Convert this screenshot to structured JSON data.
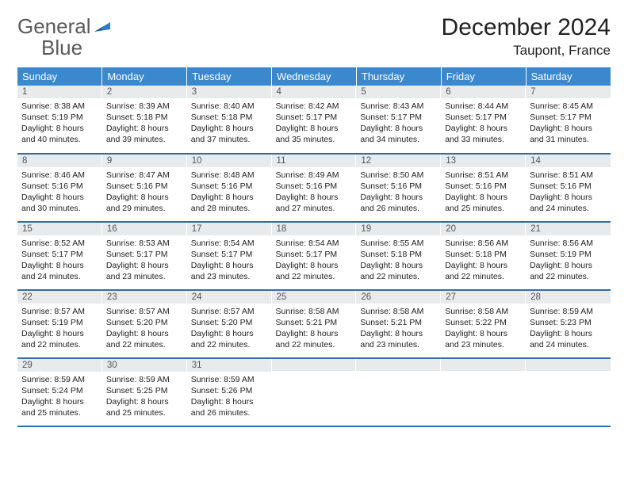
{
  "logo": {
    "line1": "General",
    "line2": "Blue",
    "flag_color": "#2f7bc4"
  },
  "title": "December 2024",
  "location": "Taupont, France",
  "header_bg": "#3a89cf",
  "header_text_color": "#ffffff",
  "daynum_bg": "#e9eaeb",
  "row_border_color": "#2f6fa8",
  "day_headers": [
    "Sunday",
    "Monday",
    "Tuesday",
    "Wednesday",
    "Thursday",
    "Friday",
    "Saturday"
  ],
  "weeks": [
    [
      {
        "n": "1",
        "sunrise": "Sunrise: 8:38 AM",
        "sunset": "Sunset: 5:19 PM",
        "day1": "Daylight: 8 hours",
        "day2": "and 40 minutes."
      },
      {
        "n": "2",
        "sunrise": "Sunrise: 8:39 AM",
        "sunset": "Sunset: 5:18 PM",
        "day1": "Daylight: 8 hours",
        "day2": "and 39 minutes."
      },
      {
        "n": "3",
        "sunrise": "Sunrise: 8:40 AM",
        "sunset": "Sunset: 5:18 PM",
        "day1": "Daylight: 8 hours",
        "day2": "and 37 minutes."
      },
      {
        "n": "4",
        "sunrise": "Sunrise: 8:42 AM",
        "sunset": "Sunset: 5:17 PM",
        "day1": "Daylight: 8 hours",
        "day2": "and 35 minutes."
      },
      {
        "n": "5",
        "sunrise": "Sunrise: 8:43 AM",
        "sunset": "Sunset: 5:17 PM",
        "day1": "Daylight: 8 hours",
        "day2": "and 34 minutes."
      },
      {
        "n": "6",
        "sunrise": "Sunrise: 8:44 AM",
        "sunset": "Sunset: 5:17 PM",
        "day1": "Daylight: 8 hours",
        "day2": "and 33 minutes."
      },
      {
        "n": "7",
        "sunrise": "Sunrise: 8:45 AM",
        "sunset": "Sunset: 5:17 PM",
        "day1": "Daylight: 8 hours",
        "day2": "and 31 minutes."
      }
    ],
    [
      {
        "n": "8",
        "sunrise": "Sunrise: 8:46 AM",
        "sunset": "Sunset: 5:16 PM",
        "day1": "Daylight: 8 hours",
        "day2": "and 30 minutes."
      },
      {
        "n": "9",
        "sunrise": "Sunrise: 8:47 AM",
        "sunset": "Sunset: 5:16 PM",
        "day1": "Daylight: 8 hours",
        "day2": "and 29 minutes."
      },
      {
        "n": "10",
        "sunrise": "Sunrise: 8:48 AM",
        "sunset": "Sunset: 5:16 PM",
        "day1": "Daylight: 8 hours",
        "day2": "and 28 minutes."
      },
      {
        "n": "11",
        "sunrise": "Sunrise: 8:49 AM",
        "sunset": "Sunset: 5:16 PM",
        "day1": "Daylight: 8 hours",
        "day2": "and 27 minutes."
      },
      {
        "n": "12",
        "sunrise": "Sunrise: 8:50 AM",
        "sunset": "Sunset: 5:16 PM",
        "day1": "Daylight: 8 hours",
        "day2": "and 26 minutes."
      },
      {
        "n": "13",
        "sunrise": "Sunrise: 8:51 AM",
        "sunset": "Sunset: 5:16 PM",
        "day1": "Daylight: 8 hours",
        "day2": "and 25 minutes."
      },
      {
        "n": "14",
        "sunrise": "Sunrise: 8:51 AM",
        "sunset": "Sunset: 5:16 PM",
        "day1": "Daylight: 8 hours",
        "day2": "and 24 minutes."
      }
    ],
    [
      {
        "n": "15",
        "sunrise": "Sunrise: 8:52 AM",
        "sunset": "Sunset: 5:17 PM",
        "day1": "Daylight: 8 hours",
        "day2": "and 24 minutes."
      },
      {
        "n": "16",
        "sunrise": "Sunrise: 8:53 AM",
        "sunset": "Sunset: 5:17 PM",
        "day1": "Daylight: 8 hours",
        "day2": "and 23 minutes."
      },
      {
        "n": "17",
        "sunrise": "Sunrise: 8:54 AM",
        "sunset": "Sunset: 5:17 PM",
        "day1": "Daylight: 8 hours",
        "day2": "and 23 minutes."
      },
      {
        "n": "18",
        "sunrise": "Sunrise: 8:54 AM",
        "sunset": "Sunset: 5:17 PM",
        "day1": "Daylight: 8 hours",
        "day2": "and 22 minutes."
      },
      {
        "n": "19",
        "sunrise": "Sunrise: 8:55 AM",
        "sunset": "Sunset: 5:18 PM",
        "day1": "Daylight: 8 hours",
        "day2": "and 22 minutes."
      },
      {
        "n": "20",
        "sunrise": "Sunrise: 8:56 AM",
        "sunset": "Sunset: 5:18 PM",
        "day1": "Daylight: 8 hours",
        "day2": "and 22 minutes."
      },
      {
        "n": "21",
        "sunrise": "Sunrise: 8:56 AM",
        "sunset": "Sunset: 5:19 PM",
        "day1": "Daylight: 8 hours",
        "day2": "and 22 minutes."
      }
    ],
    [
      {
        "n": "22",
        "sunrise": "Sunrise: 8:57 AM",
        "sunset": "Sunset: 5:19 PM",
        "day1": "Daylight: 8 hours",
        "day2": "and 22 minutes."
      },
      {
        "n": "23",
        "sunrise": "Sunrise: 8:57 AM",
        "sunset": "Sunset: 5:20 PM",
        "day1": "Daylight: 8 hours",
        "day2": "and 22 minutes."
      },
      {
        "n": "24",
        "sunrise": "Sunrise: 8:57 AM",
        "sunset": "Sunset: 5:20 PM",
        "day1": "Daylight: 8 hours",
        "day2": "and 22 minutes."
      },
      {
        "n": "25",
        "sunrise": "Sunrise: 8:58 AM",
        "sunset": "Sunset: 5:21 PM",
        "day1": "Daylight: 8 hours",
        "day2": "and 22 minutes."
      },
      {
        "n": "26",
        "sunrise": "Sunrise: 8:58 AM",
        "sunset": "Sunset: 5:21 PM",
        "day1": "Daylight: 8 hours",
        "day2": "and 23 minutes."
      },
      {
        "n": "27",
        "sunrise": "Sunrise: 8:58 AM",
        "sunset": "Sunset: 5:22 PM",
        "day1": "Daylight: 8 hours",
        "day2": "and 23 minutes."
      },
      {
        "n": "28",
        "sunrise": "Sunrise: 8:59 AM",
        "sunset": "Sunset: 5:23 PM",
        "day1": "Daylight: 8 hours",
        "day2": "and 24 minutes."
      }
    ],
    [
      {
        "n": "29",
        "sunrise": "Sunrise: 8:59 AM",
        "sunset": "Sunset: 5:24 PM",
        "day1": "Daylight: 8 hours",
        "day2": "and 25 minutes."
      },
      {
        "n": "30",
        "sunrise": "Sunrise: 8:59 AM",
        "sunset": "Sunset: 5:25 PM",
        "day1": "Daylight: 8 hours",
        "day2": "and 25 minutes."
      },
      {
        "n": "31",
        "sunrise": "Sunrise: 8:59 AM",
        "sunset": "Sunset: 5:26 PM",
        "day1": "Daylight: 8 hours",
        "day2": "and 26 minutes."
      },
      {
        "empty": true
      },
      {
        "empty": true
      },
      {
        "empty": true
      },
      {
        "empty": true
      }
    ]
  ]
}
